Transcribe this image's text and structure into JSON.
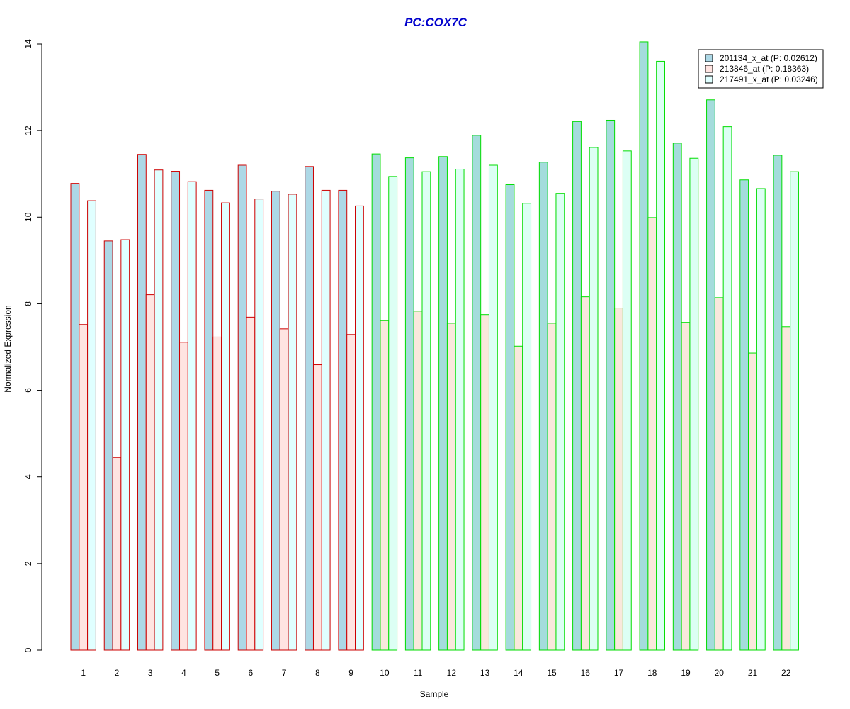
{
  "chart_data": {
    "type": "bar",
    "title": "PC:COX7C",
    "xlabel": "Sample",
    "ylabel": "Normalized Expression",
    "ylim": [
      0,
      14
    ],
    "yticks": [
      0,
      2,
      4,
      6,
      8,
      10,
      12,
      14
    ],
    "grid": false,
    "legend_position": "top-right",
    "categories": [
      "1",
      "2",
      "3",
      "4",
      "5",
      "6",
      "7",
      "8",
      "9",
      "10",
      "11",
      "12",
      "13",
      "14",
      "15",
      "16",
      "17",
      "18",
      "19",
      "20",
      "21",
      "22"
    ],
    "series": [
      {
        "name": "201134_x_at (P: 0.02612)",
        "values": [
          10.78,
          9.45,
          11.45,
          11.06,
          10.62,
          11.2,
          10.6,
          11.17,
          10.62,
          11.46,
          11.37,
          11.4,
          11.89,
          10.75,
          11.27,
          12.21,
          12.24,
          14.05,
          11.71,
          12.71,
          10.86,
          11.43
        ]
      },
      {
        "name": "213846_at (P: 0.18363)",
        "values": [
          7.52,
          4.45,
          8.21,
          7.11,
          7.23,
          7.69,
          7.42,
          6.59,
          7.29,
          7.61,
          7.83,
          7.55,
          7.75,
          7.02,
          7.55,
          8.16,
          7.9,
          9.99,
          7.57,
          8.14,
          6.86,
          7.47
        ]
      },
      {
        "name": "217491_x_at (P: 0.03246)",
        "values": [
          10.38,
          9.48,
          11.09,
          10.82,
          10.33,
          10.42,
          10.53,
          10.62,
          10.26,
          10.94,
          11.05,
          11.11,
          11.2,
          10.32,
          10.55,
          11.61,
          11.53,
          13.6,
          11.36,
          12.09,
          10.66,
          11.05
        ]
      }
    ],
    "group_border_colors": [
      "#cc0000",
      "#cc0000",
      "#cc0000",
      "#cc0000",
      "#cc0000",
      "#cc0000",
      "#cc0000",
      "#cc0000",
      "#cc0000",
      "#00dd00",
      "#00dd00",
      "#00dd00",
      "#00dd00",
      "#00dd00",
      "#00dd00",
      "#00dd00",
      "#00dd00",
      "#00dd00",
      "#00dd00",
      "#00dd00",
      "#00dd00",
      "#00dd00"
    ],
    "colors": {
      "title": "#0000cc",
      "series_fill_red_group": [
        "#add8e6",
        "#ffe4e1",
        "#e0ffff"
      ],
      "series_fill_green_group": [
        "#a4dcdc",
        "#f9e8dc",
        "#dcfff4"
      ],
      "legend_fill": [
        "#add8e6",
        "#ffe4e1",
        "#e0ffff"
      ]
    }
  }
}
